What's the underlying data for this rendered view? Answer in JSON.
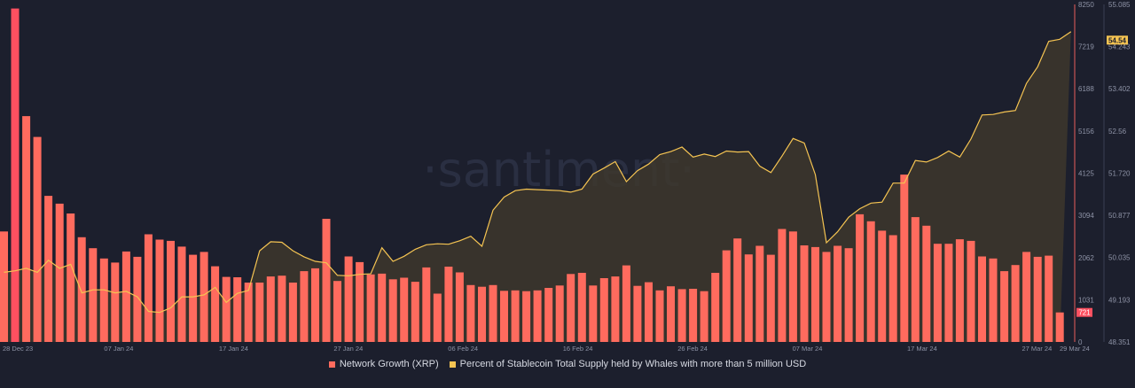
{
  "watermark": "·santiment·",
  "colors": {
    "background": "#1c1f2d",
    "bars": "#ff6b5e",
    "bars_first": "#ff5060",
    "line": "#f5c452",
    "area_fill": "#3d372d",
    "left_axis": "#e85c5c",
    "text": "#8e93a6"
  },
  "chart_data": {
    "type": "bar",
    "x_ticks": [
      "28 Dec 23",
      "07 Jan 24",
      "17 Jan 24",
      "27 Jan 24",
      "06 Feb 24",
      "16 Feb 24",
      "26 Feb 24",
      "07 Mar 24",
      "17 Mar 24",
      "27 Mar 24",
      "29 Mar 24"
    ],
    "x_start": "2023-12-28",
    "x_end": "2024-03-29",
    "series": [
      {
        "name": "Network Growth (XRP)",
        "axis": "left",
        "type": "bar",
        "color": "#ff6b5e",
        "values": [
          2700,
          8150,
          5520,
          5010,
          3570,
          3380,
          3140,
          2560,
          2290,
          2040,
          1940,
          2210,
          2080,
          2630,
          2500,
          2470,
          2330,
          2130,
          2200,
          1850,
          1590,
          1580,
          1450,
          1450,
          1600,
          1620,
          1450,
          1730,
          1800,
          3010,
          1490,
          2090,
          1950,
          1650,
          1670,
          1530,
          1570,
          1470,
          1820,
          1180,
          1840,
          1700,
          1390,
          1350,
          1390,
          1250,
          1260,
          1240,
          1260,
          1320,
          1380,
          1660,
          1690,
          1380,
          1560,
          1600,
          1870,
          1370,
          1460,
          1260,
          1360,
          1290,
          1300,
          1240,
          1690,
          2240,
          2530,
          2140,
          2350,
          2130,
          2760,
          2700,
          2360,
          2320,
          2200,
          2350,
          2290,
          3120,
          2950,
          2720,
          2610,
          4090,
          3050,
          2840,
          2400,
          2400,
          2510,
          2470,
          2090,
          2040,
          1730,
          1880,
          2200,
          2080,
          2110,
          721
        ],
        "last_label": "721",
        "ticks": [
          0,
          1031,
          2062,
          3094,
          4125,
          5156,
          6188,
          7219,
          8250
        ]
      },
      {
        "name": "Percent of Stablecoin Total Supply held by Whales with more than 5 million USD",
        "axis": "right",
        "type": "line",
        "color": "#f5c452",
        "values": [
          49.74,
          49.77,
          49.82,
          49.74,
          49.98,
          49.82,
          49.9,
          49.33,
          49.39,
          49.39,
          49.33,
          49.36,
          49.25,
          48.96,
          48.94,
          49.03,
          49.25,
          49.25,
          49.29,
          49.44,
          49.14,
          49.32,
          49.38,
          50.17,
          50.35,
          50.34,
          50.17,
          50.05,
          49.96,
          49.93,
          49.68,
          49.67,
          49.7,
          49.71,
          50.23,
          49.96,
          50.06,
          50.2,
          50.29,
          50.31,
          50.3,
          50.37,
          50.46,
          50.26,
          50.98,
          51.24,
          51.37,
          51.4,
          51.39,
          51.38,
          51.37,
          51.34,
          51.4,
          51.7,
          51.82,
          51.95,
          51.55,
          51.77,
          51.9,
          52.09,
          52.15,
          52.24,
          52.04,
          52.1,
          52.05,
          52.16,
          52.14,
          52.15,
          51.86,
          51.73,
          52.06,
          52.41,
          52.32,
          51.69,
          50.33,
          50.55,
          50.84,
          51.01,
          51.12,
          51.14,
          51.52,
          51.52,
          51.97,
          51.94,
          52.03,
          52.16,
          52.04,
          52.4,
          52.88,
          52.89,
          52.94,
          52.97,
          53.51,
          53.84,
          54.35,
          54.39,
          54.54
        ],
        "last_label": "54.54",
        "ticks": [
          "48.351",
          "49.193",
          "50.035",
          "50.877",
          "51.720",
          "52.56",
          "53.402",
          "54.243",
          "55.085"
        ]
      }
    ],
    "left_axis_range": [
      0,
      8250
    ],
    "right_axis_range": [
      48.351,
      55.085
    ],
    "grid": false,
    "legend_position": "bottom-center"
  },
  "legend": [
    {
      "label": "Network Growth (XRP)",
      "color": "#ff6b5e"
    },
    {
      "label": "Percent of Stablecoin Total Supply held by Whales with more than 5 million USD",
      "color": "#f5c452"
    }
  ]
}
